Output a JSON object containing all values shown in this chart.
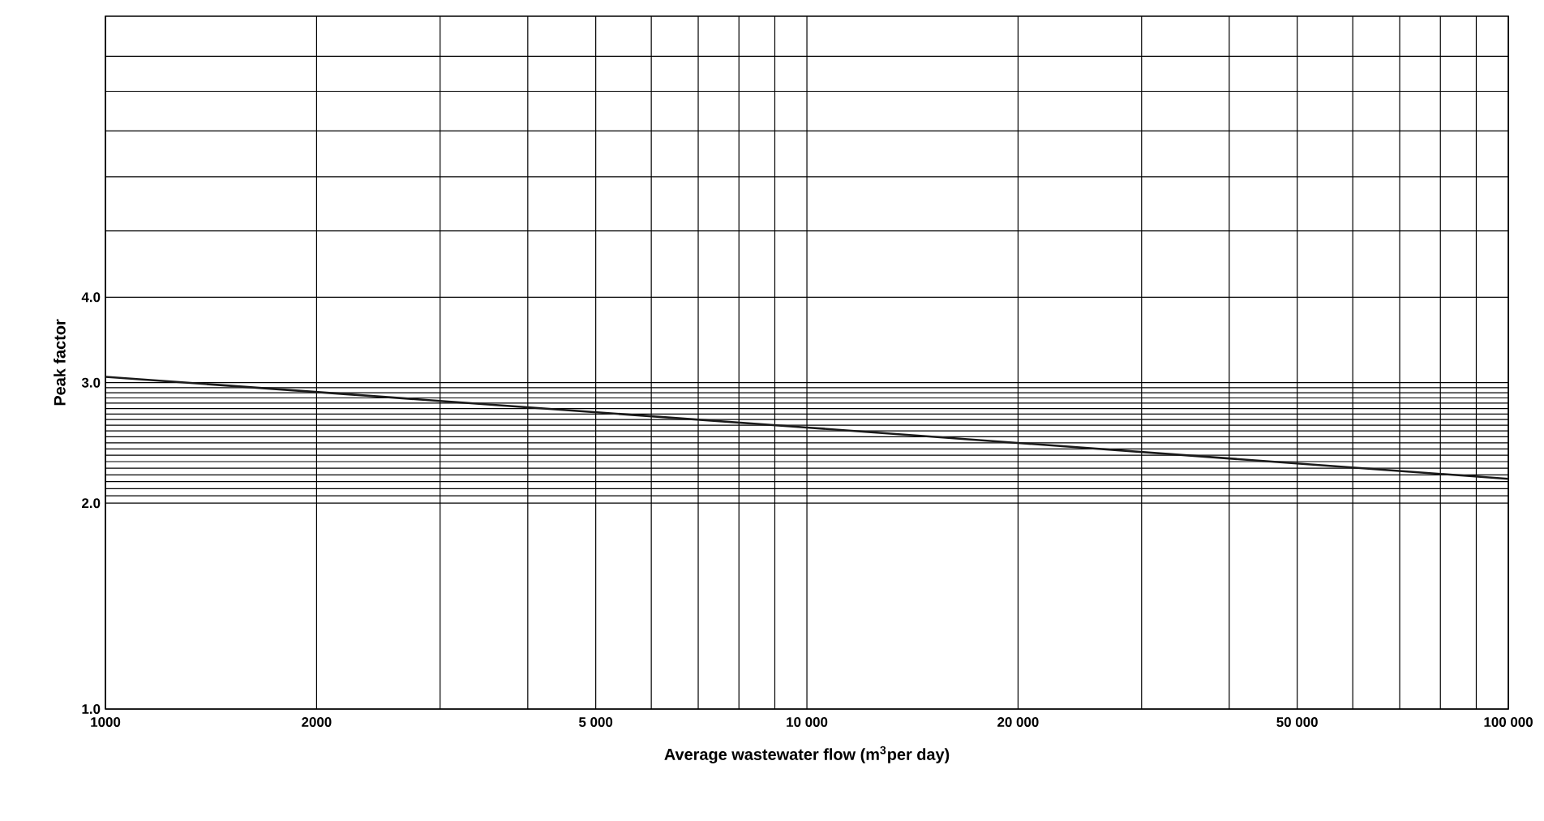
{
  "chart_data": {
    "type": "line",
    "xlabel": "Average wastewater flow (m$^{3}$per day)",
    "ylabel": "Peak factor",
    "x": [
      1000,
      10000,
      100000
    ],
    "series": [
      {
        "color": "#1a1a1a",
        "values": [
          3.06,
          2.58,
          2.17
        ]
      }
    ],
    "log": "xy",
    "grid": true,
    "xlim": [
      1000,
      100000
    ],
    "ylim": [
      1,
      10.3
    ],
    "xticks": [
      {
        "value": 1000,
        "label": "1000"
      },
      {
        "value": 2000,
        "label": "2000"
      },
      {
        "value": 3000,
        "label": null
      },
      {
        "value": 4000,
        "label": null
      },
      {
        "value": 5000,
        "label": "5 000"
      },
      {
        "value": 6000,
        "label": null
      },
      {
        "value": 7000,
        "label": null
      },
      {
        "value": 8000,
        "label": null
      },
      {
        "value": 9000,
        "label": null
      },
      {
        "value": 10000,
        "label": "10 000"
      },
      {
        "value": 20000,
        "label": "20 000"
      },
      {
        "value": 30000,
        "label": null
      },
      {
        "value": 40000,
        "label": null
      },
      {
        "value": 50000,
        "label": "50 000"
      },
      {
        "value": 60000,
        "label": null
      },
      {
        "value": 70000,
        "label": null
      },
      {
        "value": 80000,
        "label": null
      },
      {
        "value": 90000,
        "label": null
      },
      {
        "value": 100000,
        "label": "100 000"
      }
    ],
    "yticks": [
      {
        "value": 1,
        "label": "1.0"
      },
      {
        "value": 2,
        "label": "2.0"
      },
      {
        "value": 2.05,
        "label": null
      },
      {
        "value": 2.1,
        "label": null
      },
      {
        "value": 2.15,
        "label": null
      },
      {
        "value": 2.2,
        "label": null
      },
      {
        "value": 2.25,
        "label": null
      },
      {
        "value": 2.3,
        "label": null
      },
      {
        "value": 2.35,
        "label": null
      },
      {
        "value": 2.4,
        "label": null
      },
      {
        "value": 2.45,
        "label": null
      },
      {
        "value": 2.5,
        "label": null
      },
      {
        "value": 2.55,
        "label": null
      },
      {
        "value": 2.6,
        "label": null
      },
      {
        "value": 2.65,
        "label": null
      },
      {
        "value": 2.7,
        "label": null
      },
      {
        "value": 2.75,
        "label": null
      },
      {
        "value": 2.8,
        "label": null
      },
      {
        "value": 2.85,
        "label": null
      },
      {
        "value": 2.9,
        "label": null
      },
      {
        "value": 2.95,
        "label": null
      },
      {
        "value": 3,
        "label": "3.0"
      },
      {
        "value": 4,
        "label": "4.0"
      },
      {
        "value": 5,
        "label": null
      },
      {
        "value": 6,
        "label": null
      },
      {
        "value": 7,
        "label": null
      },
      {
        "value": 8,
        "label": null
      },
      {
        "value": 9,
        "label": null
      }
    ],
    "line_style": "solid",
    "marker": "none"
  }
}
